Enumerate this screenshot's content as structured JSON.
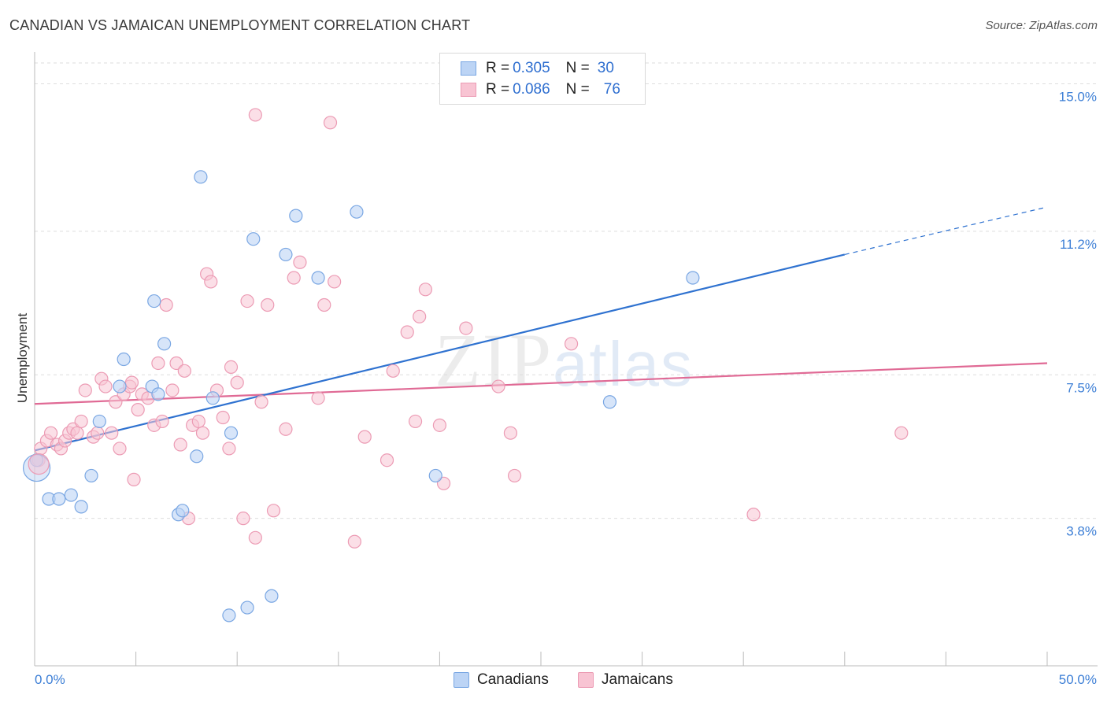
{
  "header": {
    "title": "CANADIAN VS JAMAICAN UNEMPLOYMENT CORRELATION CHART",
    "source": "Source: ZipAtlas.com"
  },
  "watermark": {
    "zip": "ZIP",
    "atlas": "atlas"
  },
  "legend": {
    "rows": [
      {
        "r_label": "R =",
        "r_value": "0.305",
        "n_label": "N =",
        "n_value": "30"
      },
      {
        "r_label": "R =",
        "r_value": "0.086",
        "n_label": "N =",
        "n_value": "76"
      }
    ]
  },
  "bottom_legend": {
    "canadians": "Canadians",
    "jamaicans": "Jamaicans"
  },
  "colors": {
    "blue_fill": "#bcd4f5",
    "blue_stroke": "#7aa7e3",
    "blue_line": "#2f72d0",
    "pink_fill": "#f8c4d3",
    "pink_stroke": "#ec9bb4",
    "pink_line": "#e06a95"
  },
  "chart_data": {
    "type": "scatter",
    "title": "CANADIAN VS JAMAICAN UNEMPLOYMENT CORRELATION CHART",
    "xlabel": "",
    "ylabel": "Unemployment",
    "xlim": [
      0,
      50
    ],
    "ylim": [
      0,
      15.7
    ],
    "x_tick_labels": [
      "0.0%",
      "50.0%"
    ],
    "y_ticks": [
      {
        "value": 15.0,
        "label": "15.0%"
      },
      {
        "value": 11.2,
        "label": "11.2%"
      },
      {
        "value": 7.5,
        "label": "7.5%"
      },
      {
        "value": 3.8,
        "label": "3.8%"
      }
    ],
    "series": [
      {
        "name": "Canadians",
        "r": 0.305,
        "n": 30,
        "points": [
          [
            0.1,
            5.3
          ],
          [
            0.7,
            4.3
          ],
          [
            1.2,
            4.3
          ],
          [
            1.8,
            4.4
          ],
          [
            2.3,
            4.1
          ],
          [
            2.8,
            4.9
          ],
          [
            3.2,
            6.3
          ],
          [
            4.2,
            7.2
          ],
          [
            4.4,
            7.9
          ],
          [
            5.8,
            7.2
          ],
          [
            5.9,
            9.4
          ],
          [
            6.1,
            7.0
          ],
          [
            6.4,
            8.3
          ],
          [
            7.1,
            3.9
          ],
          [
            7.3,
            4.0
          ],
          [
            8.0,
            5.4
          ],
          [
            8.2,
            12.6
          ],
          [
            8.8,
            6.9
          ],
          [
            9.6,
            1.3
          ],
          [
            9.7,
            6.0
          ],
          [
            10.5,
            1.5
          ],
          [
            10.8,
            11.0
          ],
          [
            11.7,
            1.8
          ],
          [
            12.4,
            10.6
          ],
          [
            12.9,
            11.6
          ],
          [
            14.0,
            10.0
          ],
          [
            15.9,
            11.7
          ],
          [
            19.8,
            4.9
          ],
          [
            28.4,
            6.8
          ],
          [
            32.5,
            10.0
          ]
        ],
        "big_point": [
          0.1,
          5.1
        ],
        "trend": {
          "x_start": 0,
          "y_start": 5.55,
          "x_solid_end": 40,
          "y_solid_end": 10.6,
          "x_dash_end": 49.8,
          "y_dash_end": 11.8
        }
      },
      {
        "name": "Jamaicans",
        "r": 0.086,
        "n": 76,
        "points": [
          [
            0.3,
            5.6
          ],
          [
            0.6,
            5.8
          ],
          [
            0.8,
            6.0
          ],
          [
            1.1,
            5.7
          ],
          [
            1.3,
            5.6
          ],
          [
            1.5,
            5.8
          ],
          [
            1.7,
            6.0
          ],
          [
            1.9,
            6.1
          ],
          [
            2.1,
            6.0
          ],
          [
            2.3,
            6.3
          ],
          [
            2.5,
            7.1
          ],
          [
            2.9,
            5.9
          ],
          [
            3.1,
            6.0
          ],
          [
            3.3,
            7.4
          ],
          [
            3.5,
            7.2
          ],
          [
            3.8,
            6.0
          ],
          [
            4.0,
            6.8
          ],
          [
            4.2,
            5.6
          ],
          [
            4.4,
            7.0
          ],
          [
            4.7,
            7.2
          ],
          [
            4.8,
            7.3
          ],
          [
            4.9,
            4.8
          ],
          [
            5.1,
            6.6
          ],
          [
            5.3,
            7.0
          ],
          [
            5.6,
            6.9
          ],
          [
            5.9,
            6.2
          ],
          [
            6.1,
            7.8
          ],
          [
            6.3,
            6.3
          ],
          [
            6.5,
            9.3
          ],
          [
            6.8,
            7.1
          ],
          [
            7.0,
            7.8
          ],
          [
            7.2,
            5.7
          ],
          [
            7.4,
            7.6
          ],
          [
            7.6,
            3.8
          ],
          [
            7.8,
            6.2
          ],
          [
            8.1,
            6.3
          ],
          [
            8.3,
            6.0
          ],
          [
            8.5,
            10.1
          ],
          [
            8.7,
            9.9
          ],
          [
            9.0,
            7.1
          ],
          [
            9.3,
            6.4
          ],
          [
            9.6,
            5.6
          ],
          [
            9.7,
            7.7
          ],
          [
            10.0,
            7.3
          ],
          [
            10.3,
            3.8
          ],
          [
            10.5,
            9.4
          ],
          [
            10.9,
            14.2
          ],
          [
            10.9,
            3.3
          ],
          [
            11.2,
            6.8
          ],
          [
            11.5,
            9.3
          ],
          [
            11.8,
            4.0
          ],
          [
            12.4,
            6.1
          ],
          [
            12.8,
            10.0
          ],
          [
            13.1,
            10.4
          ],
          [
            14.0,
            6.9
          ],
          [
            14.3,
            9.3
          ],
          [
            14.6,
            14.0
          ],
          [
            14.8,
            9.9
          ],
          [
            15.8,
            3.2
          ],
          [
            16.3,
            5.9
          ],
          [
            17.4,
            5.3
          ],
          [
            17.7,
            7.6
          ],
          [
            18.4,
            8.6
          ],
          [
            18.8,
            6.3
          ],
          [
            19.0,
            9.0
          ],
          [
            19.3,
            9.7
          ],
          [
            20.0,
            6.2
          ],
          [
            20.2,
            4.7
          ],
          [
            21.3,
            8.7
          ],
          [
            22.9,
            7.2
          ],
          [
            23.5,
            6.0
          ],
          [
            23.7,
            4.9
          ],
          [
            26.5,
            8.3
          ],
          [
            35.5,
            3.9
          ],
          [
            42.8,
            6.0
          ],
          [
            0.2,
            5.3
          ]
        ],
        "big_point": [
          0.2,
          5.2
        ],
        "trend": {
          "x_start": 0,
          "y_start": 6.75,
          "x_end": 50,
          "y_end": 7.8
        }
      }
    ]
  }
}
